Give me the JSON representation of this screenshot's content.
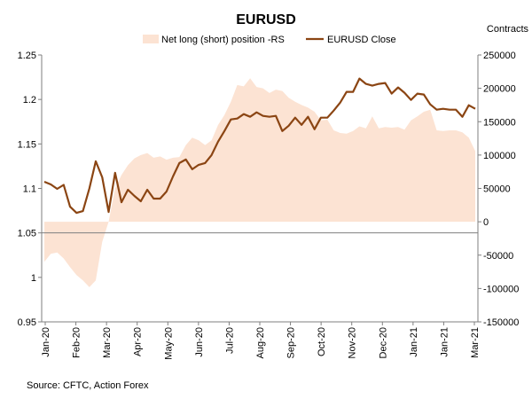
{
  "chart_data": {
    "type": "line",
    "title": "EURUSD",
    "right_axis_label": "Contracts",
    "source": "Source: CFTC, Action Forex",
    "left_axis": {
      "min": 0.95,
      "max": 1.25,
      "step": 0.05,
      "tick_labels": [
        "1.25",
        "1.2",
        "1.15",
        "1.1",
        "1.05",
        "1",
        "0.95"
      ]
    },
    "right_axis": {
      "min": -150000,
      "max": 250000,
      "step": 50000,
      "tick_labels": [
        "250000",
        "200000",
        "150000",
        "100000",
        "50000",
        "0",
        "-50000",
        "-100000",
        "-150000"
      ]
    },
    "x_tick_labels": [
      "Jan-20",
      "Feb-20",
      "Mar-20",
      "Apr-20",
      "May-20",
      "Jun-20",
      "Jul-20",
      "Aug-20",
      "Sep-20",
      "Oct-20",
      "Nov-20",
      "Dec-20",
      "Jan-21",
      "Jan-21",
      "Mar-21"
    ],
    "grid": "horizontal at 1.05 on the left axis",
    "legend": "top-center",
    "series": [
      {
        "name": "Net long (short) position -RS",
        "kind": "area",
        "axis": "right",
        "color": "#fce3d3",
        "values": [
          -60000,
          -48000,
          -46000,
          -55000,
          -68000,
          -80000,
          -88000,
          -98000,
          -88000,
          -30000,
          0,
          50000,
          70000,
          85000,
          95000,
          100000,
          103000,
          96000,
          98000,
          93000,
          96000,
          97000,
          115000,
          126000,
          122000,
          115000,
          122000,
          145000,
          160000,
          180000,
          205000,
          203000,
          215000,
          202000,
          200000,
          193000,
          198000,
          196000,
          186000,
          180000,
          175000,
          171000,
          165000,
          152000,
          153000,
          137000,
          133000,
          132000,
          136000,
          143000,
          140000,
          158000,
          140000,
          142000,
          141000,
          142000,
          138000,
          152000,
          158000,
          165000,
          168000,
          137000,
          136000,
          137000,
          137000,
          134000,
          126000,
          106000
        ]
      },
      {
        "name": "EURUSD Close",
        "kind": "line",
        "axis": "left",
        "color": "#8b4513",
        "values": [
          1.1075,
          1.1045,
          1.0995,
          1.104,
          1.0795,
          1.0725,
          1.0745,
          1.1,
          1.1305,
          1.1125,
          1.0735,
          1.1175,
          1.0845,
          1.0985,
          1.0915,
          1.0855,
          1.0985,
          1.0885,
          1.0885,
          1.0965,
          1.1135,
          1.1285,
          1.1325,
          1.1215,
          1.1265,
          1.1285,
          1.1375,
          1.1525,
          1.1645,
          1.1775,
          1.1785,
          1.1835,
          1.1805,
          1.1855,
          1.1815,
          1.1805,
          1.1815,
          1.1645,
          1.1705,
          1.1795,
          1.1715,
          1.1805,
          1.1665,
          1.1795,
          1.1795,
          1.1875,
          1.1965,
          1.2085,
          1.2085,
          1.2235,
          1.2175,
          1.2155,
          1.2175,
          1.2185,
          1.2065,
          1.2135,
          1.2075,
          1.1995,
          1.2065,
          1.2055,
          1.1945,
          1.1885,
          1.1895,
          1.1885,
          1.1885,
          1.1805,
          1.1935,
          1.1895
        ]
      }
    ]
  }
}
